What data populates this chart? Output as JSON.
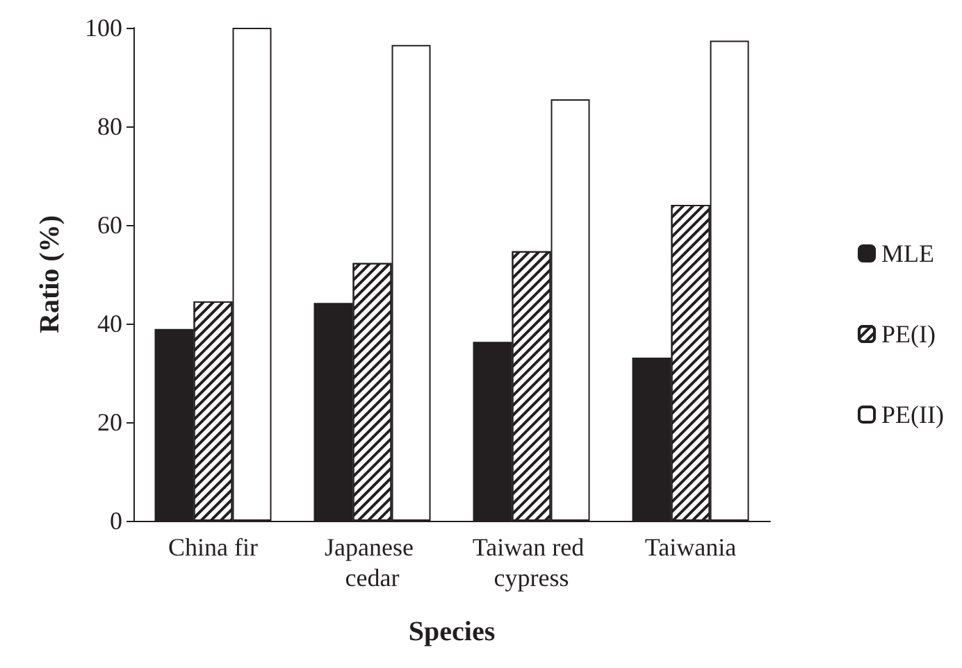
{
  "chart_data": {
    "type": "bar",
    "xlabel": "Species",
    "ylabel": "Ratio (%)",
    "categories": [
      "China fir",
      "Japanese cedar",
      "Taiwan red cypress",
      "Taiwania"
    ],
    "series": [
      {
        "name": "MLE",
        "color": "#231f20",
        "values": [
          38.9,
          44.2,
          36.3,
          33.1
        ]
      },
      {
        "name": "PE(I)",
        "color": "#ffffff",
        "values": [
          44.5,
          52.3,
          54.7,
          64.1
        ]
      },
      {
        "name": "PE(II)",
        "color": "#ffffff",
        "values": [
          100,
          96.5,
          85.5,
          97.4
        ]
      }
    ],
    "ylim": [
      0,
      100
    ],
    "yticks": [
      0,
      20,
      40,
      60,
      80,
      100
    ],
    "grid": false,
    "legend": "right"
  }
}
